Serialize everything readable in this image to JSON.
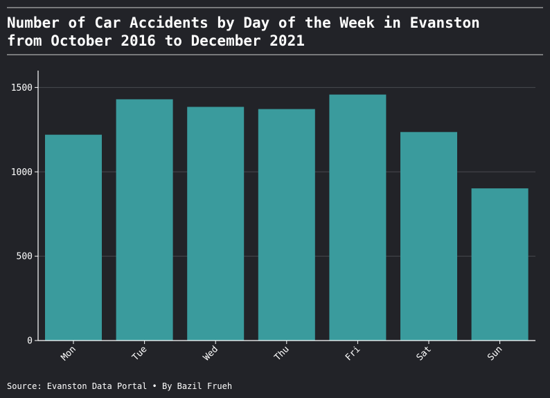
{
  "chart_data": {
    "type": "bar",
    "title_lines": [
      "Number of Car Accidents by Day of the Week in Evanston",
      "from October 2016 to December 2021"
    ],
    "categories": [
      "Mon",
      "Tue",
      "Wed",
      "Thu",
      "Fri",
      "Sat",
      "Sun"
    ],
    "values": [
      1220,
      1430,
      1385,
      1372,
      1458,
      1236,
      902
    ],
    "ylim": [
      0,
      1600
    ],
    "yticks": [
      0,
      500,
      1000,
      1500
    ],
    "ytick_labels": [
      "0",
      "500",
      "1000",
      "1500"
    ],
    "grid": true,
    "source": "Source: Evanston Data Portal • By Bazil Frueh"
  },
  "colors": {
    "background": "#222328",
    "bar": "#3a9b9d",
    "grid": "#4a4b50",
    "text": "#ffffff",
    "rule": "#d0d0d0",
    "axis": "#ffffff"
  }
}
